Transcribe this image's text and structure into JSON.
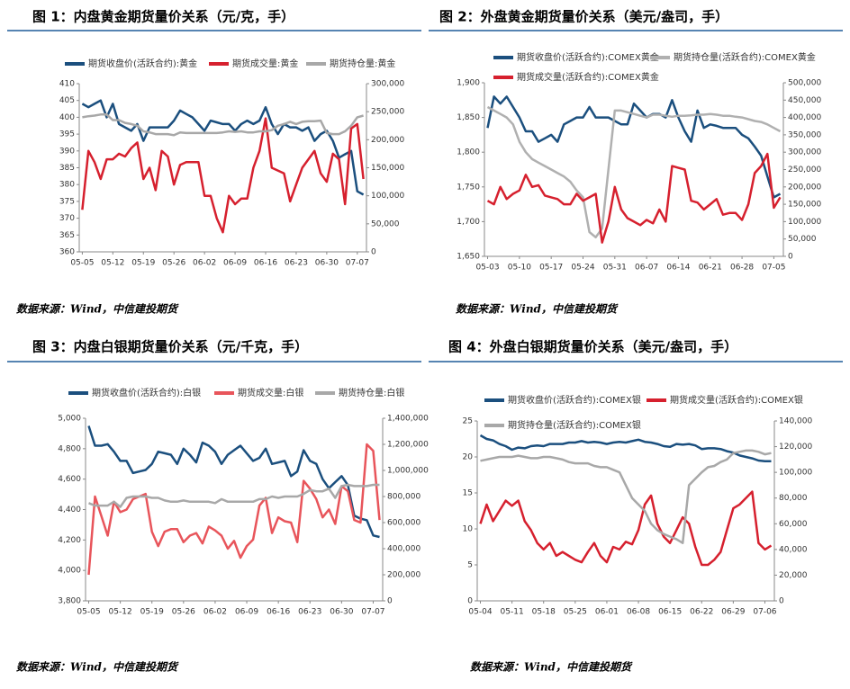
{
  "chart_data": [
    {
      "type": "line",
      "title": "图 1：内盘黄金期货量价关系（元/克，手）",
      "source": "数据来源：Wind，中信建投期货",
      "categories": [
        "05-05",
        null,
        null,
        null,
        null,
        "05-12",
        null,
        null,
        null,
        null,
        "05-19",
        null,
        null,
        null,
        null,
        "05-26",
        null,
        null,
        null,
        null,
        "06-02",
        null,
        null,
        null,
        null,
        "06-09",
        null,
        null,
        null,
        null,
        "06-16",
        null,
        null,
        null,
        null,
        "06-23",
        null,
        null,
        null,
        null,
        "06-30",
        null,
        null,
        null,
        null,
        "07-07",
        null
      ],
      "ylim": [
        360,
        410
      ],
      "yticks": [
        360,
        365,
        370,
        375,
        380,
        385,
        390,
        395,
        400,
        405,
        410
      ],
      "y2lim": [
        0,
        300000
      ],
      "y2ticks": [
        0,
        {
          "value": 50000,
          "label": "50,000"
        },
        {
          "value": 100000,
          "label": "100,000"
        },
        {
          "value": 150000,
          "label": "150,000"
        },
        {
          "value": 200000,
          "label": "200,000"
        },
        {
          "value": 250000,
          "label": "250,000"
        },
        {
          "value": 300000,
          "label": "300,000"
        }
      ],
      "series": [
        {
          "name": "期货收盘价(活跃合约):黄金",
          "color": "#1b4f7e",
          "values": [
            404,
            403,
            404,
            405,
            400,
            404,
            398,
            397,
            396,
            398,
            393,
            397,
            397,
            397,
            397,
            399,
            402,
            401,
            400,
            398,
            396,
            399,
            398.5,
            398,
            398,
            396,
            398,
            399,
            398,
            399,
            403,
            398,
            395,
            398,
            397,
            397,
            396,
            397,
            393,
            395,
            396,
            393,
            388,
            389,
            390,
            378,
            377
          ]
        },
        {
          "name": "期货成交量:黄金",
          "color": "#d6202e",
          "axis": "y2",
          "values": [
            75000,
            180000,
            160000,
            130000,
            165000,
            165000,
            175000,
            170000,
            185000,
            195000,
            130000,
            150000,
            110000,
            180000,
            170000,
            120000,
            155000,
            160000,
            160000,
            160000,
            100000,
            100000,
            60000,
            35000,
            100000,
            85000,
            95000,
            95000,
            150000,
            180000,
            238000,
            150000,
            145000,
            140000,
            90000,
            120000,
            150000,
            165000,
            180000,
            140000,
            125000,
            175000,
            165000,
            85000,
            220000,
            228000,
            130000
          ]
        },
        {
          "name": "期货持仓量:黄金",
          "color": "#a8a8a8",
          "axis": "y2",
          "values": [
            240000,
            242000,
            243000,
            245000,
            245000,
            235000,
            235000,
            230000,
            228000,
            225000,
            215000,
            213000,
            210000,
            210000,
            210000,
            208000,
            213000,
            212000,
            212000,
            212000,
            212000,
            212000,
            212000,
            213000,
            215000,
            214000,
            215000,
            213000,
            213000,
            215000,
            215000,
            217000,
            225000,
            228000,
            232000,
            228000,
            232000,
            233000,
            233000,
            234000,
            212000,
            210000,
            210000,
            215000,
            225000,
            240000,
            243000
          ]
        }
      ]
    },
    {
      "type": "line",
      "title": "图 2：外盘黄金期货量价关系（美元/盎司，手）",
      "source": "数据来源：Wind，中信建投期货",
      "categories": [
        "05-03",
        null,
        null,
        null,
        null,
        "05-10",
        null,
        null,
        null,
        null,
        "05-17",
        null,
        null,
        null,
        null,
        "05-24",
        null,
        null,
        null,
        null,
        "05-31",
        null,
        null,
        null,
        null,
        "06-07",
        null,
        null,
        null,
        null,
        "06-14",
        null,
        null,
        null,
        null,
        "06-21",
        null,
        null,
        null,
        null,
        "06-28",
        null,
        null,
        null,
        null,
        "07-05",
        null
      ],
      "ylim": [
        1650,
        1900
      ],
      "yticks": [
        {
          "value": 1650,
          "label": "1,650"
        },
        {
          "value": 1700,
          "label": "1,700"
        },
        {
          "value": 1750,
          "label": "1,750"
        },
        {
          "value": 1800,
          "label": "1,800"
        },
        {
          "value": 1850,
          "label": "1,850"
        },
        {
          "value": 1900,
          "label": "1,900"
        }
      ],
      "y2lim": [
        0,
        500000
      ],
      "y2ticks": [
        0,
        {
          "value": 50000,
          "label": "50,000"
        },
        {
          "value": 100000,
          "label": "100,000"
        },
        {
          "value": 150000,
          "label": "150,000"
        },
        {
          "value": 200000,
          "label": "200,000"
        },
        {
          "value": 250000,
          "label": "250,000"
        },
        {
          "value": 300000,
          "label": "300,000"
        },
        {
          "value": 350000,
          "label": "350,000"
        },
        {
          "value": 400000,
          "label": "400,000"
        },
        {
          "value": 450000,
          "label": "450,000"
        },
        {
          "value": 500000,
          "label": "500,000"
        }
      ],
      "series": [
        {
          "name": "期货收盘价(活跃合约):COMEX黄金",
          "color": "#1b4f7e",
          "values": [
            1835,
            1880,
            1870,
            1880,
            1865,
            1850,
            1830,
            1830,
            1815,
            1820,
            1825,
            1815,
            1840,
            1845,
            1850,
            1850,
            1865,
            1850,
            1850,
            1850,
            1845,
            1840,
            1840,
            1870,
            1860,
            1850,
            1855,
            1855,
            1850,
            1875,
            1850,
            1830,
            1815,
            1860,
            1835,
            1840,
            1838,
            1835,
            1835,
            1835,
            1825,
            1820,
            1808,
            1795,
            1765,
            1735,
            1740
          ]
        },
        {
          "name": "期货持仓量(活跃合约):COMEX黄金",
          "color": "#b0b0b0",
          "axis": "y2",
          "values": [
            430000,
            420000,
            410000,
            400000,
            380000,
            330000,
            300000,
            280000,
            270000,
            260000,
            250000,
            240000,
            230000,
            215000,
            190000,
            170000,
            70000,
            55000,
            80000,
            250000,
            420000,
            420000,
            415000,
            410000,
            405000,
            400000,
            408000,
            408000,
            405000,
            402000,
            405000,
            405000,
            406000,
            408000,
            408000,
            410000,
            408000,
            405000,
            405000,
            402000,
            400000,
            395000,
            390000,
            387000,
            380000,
            370000,
            360000
          ]
        },
        {
          "name": "期货成交量(活跃合约):COMEX黄金",
          "color": "#d6202e",
          "axis": "y2",
          "values": [
            160000,
            150000,
            200000,
            165000,
            180000,
            190000,
            235000,
            200000,
            205000,
            175000,
            170000,
            165000,
            150000,
            150000,
            180000,
            160000,
            170000,
            180000,
            40000,
            100000,
            200000,
            135000,
            110000,
            100000,
            90000,
            105000,
            95000,
            135000,
            100000,
            260000,
            255000,
            250000,
            160000,
            155000,
            135000,
            150000,
            165000,
            120000,
            125000,
            125000,
            105000,
            150000,
            240000,
            260000,
            295000,
            140000,
            170000
          ]
        }
      ]
    },
    {
      "type": "line",
      "title": "图 3：内盘白银期货量价关系（元/千克，手）",
      "source": "数据来源：Wind，中信建投期货",
      "categories": [
        "05-05",
        null,
        null,
        null,
        null,
        "05-12",
        null,
        null,
        null,
        null,
        "05-19",
        null,
        null,
        null,
        null,
        "05-26",
        null,
        null,
        null,
        null,
        "06-02",
        null,
        null,
        null,
        null,
        "06-09",
        null,
        null,
        null,
        null,
        "06-16",
        null,
        null,
        null,
        null,
        "06-23",
        null,
        null,
        null,
        null,
        "06-30",
        null,
        null,
        null,
        null,
        "07-07",
        null
      ],
      "ylim": [
        3800,
        5000
      ],
      "yticks": [
        {
          "value": 3800,
          "label": "3,800"
        },
        {
          "value": 4000,
          "label": "4,000"
        },
        {
          "value": 4200,
          "label": "4,200"
        },
        {
          "value": 4400,
          "label": "4,400"
        },
        {
          "value": 4600,
          "label": "4,600"
        },
        {
          "value": 4800,
          "label": "4,800"
        },
        {
          "value": 5000,
          "label": "5,000"
        }
      ],
      "y2lim": [
        0,
        1400000
      ],
      "y2ticks": [
        0,
        {
          "value": 200000,
          "label": "200,000"
        },
        {
          "value": 400000,
          "label": "400,000"
        },
        {
          "value": 600000,
          "label": "600,000"
        },
        {
          "value": 800000,
          "label": "800,000"
        },
        {
          "value": 1000000,
          "label": "1,000,000"
        },
        {
          "value": 1200000,
          "label": "1,200,000"
        },
        {
          "value": 1400000,
          "label": "1,400,000"
        }
      ],
      "series": [
        {
          "name": "期货收盘价(活跃合约):白银",
          "color": "#1b4f7e",
          "values": [
            4950,
            4820,
            4820,
            4830,
            4780,
            4720,
            4720,
            4640,
            4650,
            4660,
            4700,
            4780,
            4770,
            4760,
            4700,
            4800,
            4760,
            4710,
            4840,
            4820,
            4780,
            4700,
            4760,
            4790,
            4820,
            4770,
            4720,
            4740,
            4800,
            4700,
            4710,
            4720,
            4620,
            4650,
            4790,
            4720,
            4700,
            4600,
            4540,
            4580,
            4620,
            4560,
            4360,
            4340,
            4330,
            4230,
            4220
          ]
        },
        {
          "name": "期货成交量:白银",
          "color": "#e8555b",
          "axis": "y2",
          "values": [
            200000,
            800000,
            650000,
            500000,
            760000,
            680000,
            700000,
            780000,
            800000,
            820000,
            530000,
            420000,
            530000,
            550000,
            550000,
            450000,
            500000,
            520000,
            440000,
            570000,
            540000,
            500000,
            400000,
            460000,
            330000,
            420000,
            470000,
            730000,
            790000,
            520000,
            640000,
            610000,
            600000,
            450000,
            920000,
            860000,
            780000,
            640000,
            700000,
            590000,
            880000,
            840000,
            620000,
            600000,
            1200000,
            1150000,
            620000
          ]
        },
        {
          "name": "期货持仓量:白银",
          "color": "#a8a8a8",
          "axis": "y2",
          "values": [
            750000,
            730000,
            730000,
            730000,
            760000,
            720000,
            790000,
            800000,
            800000,
            800000,
            790000,
            790000,
            770000,
            760000,
            760000,
            770000,
            760000,
            760000,
            760000,
            760000,
            750000,
            780000,
            760000,
            760000,
            760000,
            760000,
            760000,
            780000,
            780000,
            800000,
            790000,
            800000,
            800000,
            800000,
            820000,
            850000,
            840000,
            840000,
            860000,
            790000,
            880000,
            890000,
            880000,
            880000,
            880000,
            890000,
            890000
          ]
        }
      ]
    },
    {
      "type": "line",
      "title": "图 4：外盘白银期货量价关系（美元/盎司，手）",
      "source": "数据来源：Wind，中信建投期货",
      "categories": [
        "05-04",
        null,
        null,
        null,
        null,
        "05-11",
        null,
        null,
        null,
        null,
        "05-18",
        null,
        null,
        null,
        null,
        "05-25",
        null,
        null,
        null,
        null,
        "06-01",
        null,
        null,
        null,
        null,
        "06-08",
        null,
        null,
        null,
        null,
        "06-15",
        null,
        null,
        null,
        null,
        "06-22",
        null,
        null,
        null,
        null,
        "06-29",
        null,
        null,
        null,
        null,
        "07-06",
        null
      ],
      "ylim": [
        0,
        25
      ],
      "yticks": [
        0,
        5,
        10,
        15,
        20,
        25
      ],
      "y2lim": [
        0,
        140000
      ],
      "y2ticks": [
        0,
        {
          "value": 20000,
          "label": "20,000"
        },
        {
          "value": 40000,
          "label": "40,000"
        },
        {
          "value": 60000,
          "label": "60,000"
        },
        {
          "value": 80000,
          "label": "80,000"
        },
        {
          "value": 100000,
          "label": "100,000"
        },
        {
          "value": 120000,
          "label": "120,000"
        },
        {
          "value": 140000,
          "label": "140,000"
        }
      ],
      "series": [
        {
          "name": "期货收盘价(活跃合约):COMEX银",
          "color": "#1b4f7e",
          "values": [
            23,
            22.5,
            22.3,
            21.8,
            21.5,
            21,
            21.3,
            21.2,
            21.5,
            21.6,
            21.5,
            21.8,
            21.8,
            21.8,
            22,
            22,
            22.2,
            22,
            22.1,
            22,
            21.8,
            22,
            22.1,
            22,
            22.2,
            22.4,
            22.1,
            22,
            21.8,
            21.5,
            21.4,
            21.8,
            21.7,
            21.8,
            21.6,
            21.1,
            21.2,
            21.2,
            21.1,
            20.8,
            20.6,
            20.2,
            20,
            19.8,
            19.5,
            19.4,
            19.4
          ]
        },
        {
          "name": "期货成交量(活跃合约):COMEX银",
          "color": "#d6202e",
          "axis": "y2",
          "values": [
            60000,
            75000,
            62000,
            70000,
            78000,
            74000,
            78000,
            62000,
            55000,
            45000,
            40000,
            45000,
            35000,
            38000,
            35000,
            32000,
            30000,
            38000,
            45000,
            35000,
            30000,
            42000,
            40000,
            46000,
            44000,
            55000,
            75000,
            82000,
            60000,
            50000,
            45000,
            55000,
            65000,
            60000,
            42000,
            28000,
            28000,
            32000,
            38000,
            55000,
            72000,
            75000,
            80000,
            85000,
            45000,
            40000,
            43000
          ]
        },
        {
          "name": "期货持仓量(活跃合约):COMEX银",
          "color": "#a8a8a8",
          "axis": "y2",
          "values": [
            109000,
            110000,
            111000,
            112000,
            112000,
            112000,
            113000,
            112000,
            111000,
            111000,
            112000,
            112000,
            111000,
            110000,
            108000,
            107000,
            107000,
            107000,
            105000,
            104000,
            104000,
            102000,
            100000,
            90000,
            80000,
            75000,
            70000,
            60000,
            55000,
            52000,
            50000,
            48000,
            45000,
            90000,
            95000,
            100000,
            104000,
            105000,
            108000,
            110000,
            115000,
            116000,
            117000,
            117000,
            116000,
            114000,
            115000
          ]
        }
      ]
    }
  ]
}
